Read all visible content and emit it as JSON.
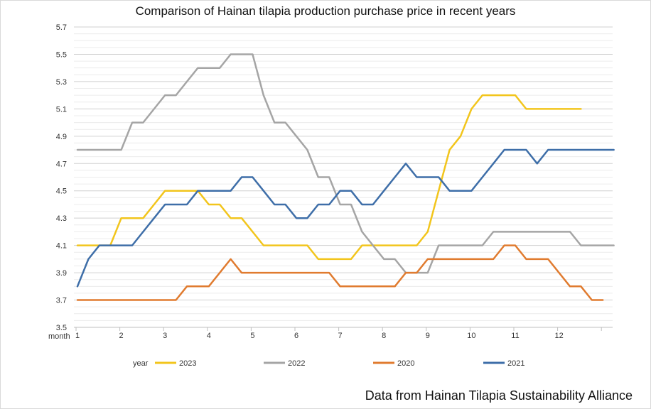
{
  "chart_data": {
    "type": "line",
    "title": "Comparison of Hainan tilapia production purchase price in recent years",
    "source": "Data from Hainan Tilapia Sustainability Alliance",
    "xlabel": "month",
    "legend_title": "year",
    "legend_position": "bottom",
    "grid": true,
    "ylim": [
      3.5,
      5.7
    ],
    "yticks": [
      "3.5",
      "3.7",
      "3.9",
      "4.1",
      "4.3",
      "4.5",
      "4.7",
      "4.9",
      "5.1",
      "5.3",
      "5.5",
      "5.7"
    ],
    "month_ticks": [
      "1",
      "2",
      "3",
      "4",
      "5",
      "6",
      "7",
      "8",
      "9",
      "10",
      "11",
      "12"
    ],
    "month_tick_points": [
      0,
      4,
      8,
      12,
      16,
      20,
      24,
      28,
      32,
      36,
      40,
      44
    ],
    "points_per_month": 4,
    "series": [
      {
        "name": "2023",
        "color": "#f2c51c",
        "values": [
          4.1,
          4.1,
          4.1,
          4.1,
          4.3,
          4.3,
          4.3,
          4.4,
          4.5,
          4.5,
          4.5,
          4.5,
          4.4,
          4.4,
          4.3,
          4.3,
          4.2,
          4.1,
          4.1,
          4.1,
          4.1,
          4.1,
          4.0,
          4.0,
          4.0,
          4.0,
          4.1,
          4.1,
          4.1,
          4.1,
          4.1,
          4.1,
          4.2,
          4.5,
          4.8,
          4.9,
          5.1,
          5.2,
          5.2,
          5.2,
          5.2,
          5.1,
          5.1,
          5.1,
          5.1,
          5.1,
          5.1
        ]
      },
      {
        "name": "2022",
        "color": "#a5a5a5",
        "values": [
          4.8,
          4.8,
          4.8,
          4.8,
          4.8,
          5.0,
          5.0,
          5.1,
          5.2,
          5.2,
          5.3,
          5.4,
          5.4,
          5.4,
          5.5,
          5.5,
          5.5,
          5.2,
          5.0,
          5.0,
          4.9,
          4.8,
          4.6,
          4.6,
          4.4,
          4.4,
          4.2,
          4.1,
          4.0,
          4.0,
          3.9,
          3.9,
          3.9,
          4.1,
          4.1,
          4.1,
          4.1,
          4.1,
          4.2,
          4.2,
          4.2,
          4.2,
          4.2,
          4.2,
          4.2,
          4.2,
          4.1,
          4.1,
          4.1,
          4.1
        ]
      },
      {
        "name": "2020",
        "color": "#e07b2f",
        "values": [
          3.7,
          3.7,
          3.7,
          3.7,
          3.7,
          3.7,
          3.7,
          3.7,
          3.7,
          3.7,
          3.8,
          3.8,
          3.8,
          3.9,
          4.0,
          3.9,
          3.9,
          3.9,
          3.9,
          3.9,
          3.9,
          3.9,
          3.9,
          3.9,
          3.8,
          3.8,
          3.8,
          3.8,
          3.8,
          3.8,
          3.9,
          3.9,
          4.0,
          4.0,
          4.0,
          4.0,
          4.0,
          4.0,
          4.0,
          4.1,
          4.1,
          4.0,
          4.0,
          4.0,
          3.9,
          3.8,
          3.8,
          3.7,
          3.7
        ]
      },
      {
        "name": "2021",
        "color": "#3e6ea8",
        "values": [
          3.8,
          4.0,
          4.1,
          4.1,
          4.1,
          4.1,
          4.2,
          4.3,
          4.4,
          4.4,
          4.4,
          4.5,
          4.5,
          4.5,
          4.5,
          4.6,
          4.6,
          4.5,
          4.4,
          4.4,
          4.3,
          4.3,
          4.4,
          4.4,
          4.5,
          4.5,
          4.4,
          4.4,
          4.5,
          4.6,
          4.7,
          4.6,
          4.6,
          4.6,
          4.5,
          4.5,
          4.5,
          4.6,
          4.7,
          4.8,
          4.8,
          4.8,
          4.7,
          4.8,
          4.8,
          4.8,
          4.8,
          4.8,
          4.8,
          4.8
        ]
      }
    ]
  }
}
